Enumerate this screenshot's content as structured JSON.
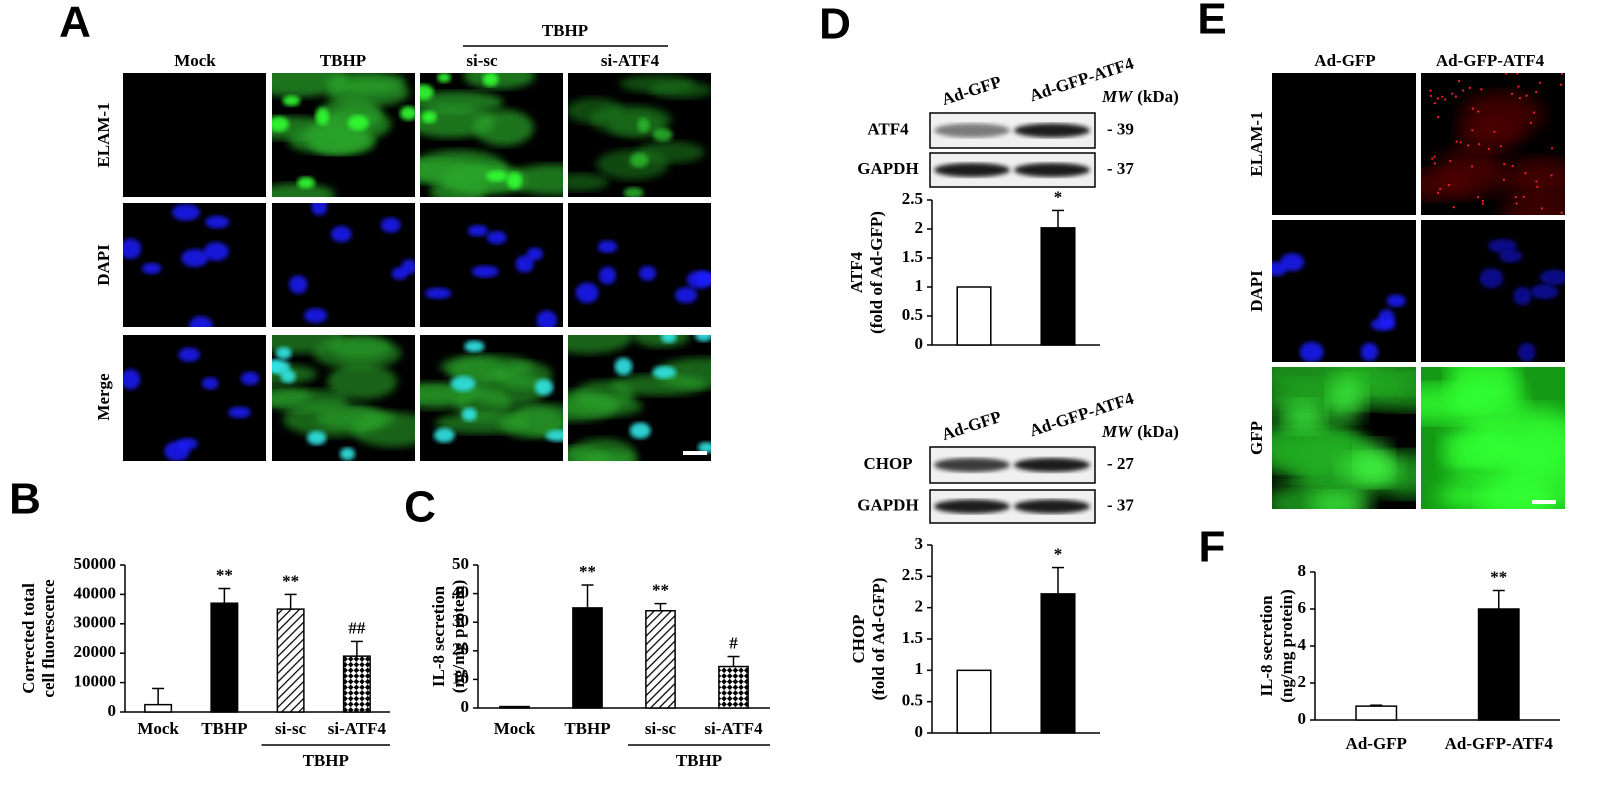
{
  "letters": [
    "A",
    "B",
    "C",
    "D",
    "E",
    "F"
  ],
  "panel_a": {
    "columns": [
      "Mock",
      "TBHP",
      "si-sc",
      "si-ATF4"
    ],
    "group": "TBHP",
    "rows": [
      "ELAM-1",
      "DAPI",
      "Merge"
    ]
  },
  "panel_d": {
    "blots": [
      {
        "lanes": [
          "Ad-GFP",
          "Ad-GFP-ATF4"
        ],
        "mw": "MW",
        "unit": "(kDa)",
        "bands": [
          {
            "label": "ATF4",
            "mw": "- 39"
          },
          {
            "label": "GAPDH",
            "mw": "- 37"
          }
        ]
      },
      {
        "lanes": [
          "Ad-GFP",
          "Ad-GFP-ATF4"
        ],
        "mw": "MW",
        "unit": "(kDa)",
        "bands": [
          {
            "label": "CHOP",
            "mw": "- 27"
          },
          {
            "label": "GAPDH",
            "mw": "- 37"
          }
        ]
      }
    ]
  },
  "panel_e": {
    "columns": [
      "Ad-GFP",
      "Ad-GFP-ATF4"
    ],
    "rows": [
      "ELAM-1",
      "DAPI",
      "GFP"
    ]
  },
  "chart_data": [
    {
      "type": "bar",
      "ylabel": [
        "Corrected total",
        "cell fluorescence"
      ],
      "categories": [
        "Mock",
        "TBHP",
        "si-sc",
        "si-ATF4"
      ],
      "values": [
        2500,
        37000,
        35000,
        19000
      ],
      "errors": [
        5500,
        5000,
        5000,
        5000
      ],
      "annotations": [
        null,
        "**",
        "**",
        "##"
      ],
      "fills": [
        "white",
        "black",
        "hatch",
        "checker"
      ],
      "group_label": "TBHP",
      "ylim": [
        0,
        50000
      ],
      "yticks": [
        0,
        10000,
        20000,
        30000,
        40000,
        50000
      ]
    },
    {
      "type": "bar",
      "ylabel": [
        "IL-8 secretion",
        "(ng/mg protein)"
      ],
      "categories": [
        "Mock",
        "TBHP",
        "si-sc",
        "si-ATF4"
      ],
      "values": [
        0.5,
        35,
        34,
        14.5
      ],
      "errors": [
        0,
        8,
        2.5,
        3.5
      ],
      "annotations": [
        null,
        "**",
        "**",
        "#"
      ],
      "fills": [
        "white",
        "black",
        "hatch",
        "checker"
      ],
      "group_label": "TBHP",
      "ylim": [
        0,
        50
      ],
      "yticks": [
        0,
        10,
        20,
        30,
        40,
        50
      ]
    },
    {
      "type": "bar",
      "ylabel": [
        "ATF4",
        "(fold of Ad-GFP)"
      ],
      "categories": [
        null,
        null
      ],
      "values": [
        1,
        2.02
      ],
      "errors": [
        0,
        0.3
      ],
      "annotations": [
        null,
        "*"
      ],
      "fills": [
        "white",
        "black"
      ],
      "ylim": [
        0,
        2.5
      ],
      "yticks": [
        0,
        0.5,
        1,
        1.5,
        2,
        2.5
      ]
    },
    {
      "type": "bar",
      "ylabel": [
        "CHOP",
        "(fold of Ad-GFP)"
      ],
      "categories": [
        null,
        null
      ],
      "values": [
        1,
        2.22
      ],
      "errors": [
        0,
        0.42
      ],
      "annotations": [
        null,
        "*"
      ],
      "fills": [
        "white",
        "black"
      ],
      "ylim": [
        0,
        3
      ],
      "yticks": [
        0,
        0.5,
        1,
        1.5,
        2,
        2.5,
        3
      ]
    },
    {
      "type": "bar",
      "ylabel": [
        "IL-8 secretion",
        "(ng/mg protein)"
      ],
      "categories": [
        "Ad-GFP",
        "Ad-GFP-ATF4"
      ],
      "values": [
        0.75,
        6.0
      ],
      "errors": [
        0.05,
        1.0
      ],
      "annotations": [
        null,
        "**"
      ],
      "fills": [
        "white",
        "black"
      ],
      "ylim": [
        0,
        8
      ],
      "yticks": [
        0,
        2,
        4,
        6,
        8
      ]
    }
  ]
}
